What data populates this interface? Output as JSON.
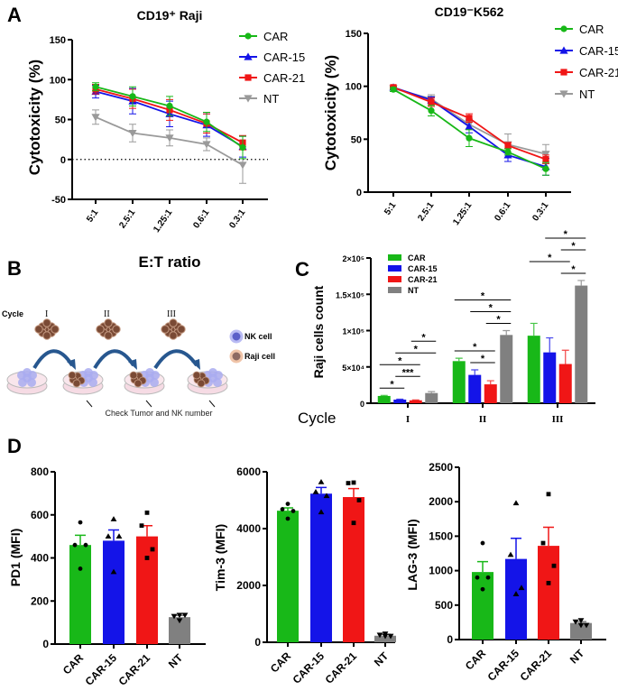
{
  "panel_labels": {
    "a": "A",
    "b": "B",
    "c": "C",
    "d": "D"
  },
  "colors": {
    "CAR": "#18b818",
    "CAR-15": "#1414e8",
    "CAR-21": "#f01616",
    "NT_line": "#9a9a9a",
    "NT_bar": "#808080"
  },
  "shared_xlabel": "E:T ratio",
  "schematic": {
    "cycle_label": "Cycle",
    "cycles": [
      "I",
      "II",
      "III"
    ],
    "legend": [
      {
        "label": "NK cell",
        "color": "#8b8fe0"
      },
      {
        "label": "Raji cell",
        "color": "#9a6a5a"
      }
    ],
    "caption": "Check Tumor and NK number"
  },
  "chart_data": [
    {
      "type": "line",
      "title": "CD19⁺ Raji",
      "ylabel": "Cytotoxicity (%)",
      "xlabel": "E:T ratio",
      "categories": [
        "5:1",
        "2.5:1",
        "1.25:1",
        "0.6:1",
        "0.3:1"
      ],
      "ylim": [
        -50,
        150
      ],
      "yticks": [
        -50,
        0,
        50,
        100,
        150
      ],
      "reference_line": 0,
      "legend_position": "top-right",
      "series": [
        {
          "name": "CAR",
          "marker": "circle",
          "values": [
            91,
            79,
            67,
            47,
            15
          ],
          "error": [
            5,
            12,
            12,
            12,
            14
          ]
        },
        {
          "name": "CAR-15",
          "marker": "triangle-up",
          "values": [
            85,
            73,
            57,
            43,
            16
          ],
          "error": [
            8,
            16,
            16,
            14,
            13
          ]
        },
        {
          "name": "CAR-21",
          "marker": "square",
          "values": [
            88,
            76,
            62,
            45,
            21
          ],
          "error": [
            6,
            12,
            13,
            12,
            9
          ]
        },
        {
          "name": "NT",
          "marker": "triangle-down",
          "values": [
            53,
            33,
            27,
            19,
            -7
          ],
          "error": [
            9,
            11,
            10,
            8,
            23
          ]
        }
      ]
    },
    {
      "type": "line",
      "title": "CD19⁻K562",
      "ylabel": "Cytotoxicity (%)",
      "categories": [
        "5:1",
        "2.5:1",
        "1.25:1",
        "0.6:1",
        "0.3:1"
      ],
      "ylim": [
        0,
        150
      ],
      "yticks": [
        0,
        50,
        100,
        150
      ],
      "legend_position": "top-right",
      "series": [
        {
          "name": "CAR",
          "marker": "circle",
          "values": [
            97,
            77,
            51,
            38,
            22
          ],
          "error": [
            2,
            5,
            8,
            3,
            6
          ]
        },
        {
          "name": "CAR-15",
          "marker": "triangle-up",
          "values": [
            99,
            87,
            62,
            35,
            24
          ],
          "error": [
            1,
            3,
            6,
            6,
            8
          ]
        },
        {
          "name": "CAR-21",
          "marker": "square",
          "values": [
            99,
            85,
            70,
            44,
            31
          ],
          "error": [
            1,
            4,
            4,
            3,
            4
          ]
        },
        {
          "name": "NT",
          "marker": "triangle-down",
          "values": [
            98,
            88,
            64,
            45,
            36
          ],
          "error": [
            1,
            4,
            5,
            10,
            9
          ]
        }
      ]
    },
    {
      "type": "bar",
      "ylabel": "Raji cells count",
      "xlabel": "Cycle",
      "categories": [
        "I",
        "II",
        "III"
      ],
      "ylim": [
        0,
        200000
      ],
      "yticks": [
        0,
        50000,
        100000,
        150000,
        200000
      ],
      "yticklabels": [
        "0",
        "5×10⁴",
        "1×10⁵",
        "1.5×10⁵",
        "2×10⁵"
      ],
      "legend_position": "top-left",
      "series": [
        {
          "name": "CAR",
          "values": [
            10000,
            58000,
            93000
          ],
          "error": [
            800,
            4000,
            17000
          ]
        },
        {
          "name": "CAR-15",
          "values": [
            5000,
            39000,
            70000
          ],
          "error": [
            600,
            7000,
            20000
          ]
        },
        {
          "name": "CAR-21",
          "values": [
            4000,
            26000,
            54000
          ],
          "error": [
            500,
            5000,
            19000
          ]
        },
        {
          "name": "NT",
          "values": [
            14000,
            94000,
            162000
          ],
          "error": [
            2000,
            6000,
            7000
          ]
        }
      ],
      "significance": [
        {
          "group": 0,
          "from": 0,
          "to": 1,
          "label": "*"
        },
        {
          "group": 0,
          "from": 1,
          "to": 2,
          "label": "***"
        },
        {
          "group": 0,
          "from": 0,
          "to": 2,
          "label": "*"
        },
        {
          "group": 0,
          "from": 1,
          "to": 3,
          "label": "*"
        },
        {
          "group": 0,
          "from": 2,
          "to": 3,
          "label": "*"
        },
        {
          "group": 1,
          "from": 1,
          "to": 2,
          "label": "*"
        },
        {
          "group": 1,
          "from": 0,
          "to": 2,
          "label": "*"
        },
        {
          "group": 1,
          "from": 2,
          "to": 3,
          "label": "*"
        },
        {
          "group": 1,
          "from": 1,
          "to": 3,
          "label": "*"
        },
        {
          "group": 1,
          "from": 0,
          "to": 3,
          "label": "*"
        },
        {
          "group": 2,
          "from": 2,
          "to": 3,
          "label": "*"
        },
        {
          "group": 2,
          "from": 0,
          "to": 2,
          "label": "*"
        },
        {
          "group": 2,
          "from": 2,
          "to": 3,
          "label": "*"
        },
        {
          "group": 2,
          "from": 1,
          "to": 3,
          "label": "*"
        }
      ]
    },
    {
      "type": "bar",
      "ylabel": "PD1 (MFI)",
      "categories": [
        "CAR",
        "CAR-15",
        "CAR-21",
        "NT"
      ],
      "ylim": [
        0,
        800
      ],
      "yticks": [
        0,
        200,
        400,
        600,
        800
      ],
      "values": [
        460,
        480,
        500,
        125
      ],
      "error": [
        45,
        50,
        50,
        8
      ],
      "points": [
        [
          565,
          460,
          460,
          350
        ],
        [
          580,
          500,
          500,
          335
        ],
        [
          610,
          550,
          440,
          400
        ],
        [
          135,
          130,
          135,
          110
        ]
      ]
    },
    {
      "type": "bar",
      "ylabel": "Tim-3 (MFI)",
      "categories": [
        "CAR",
        "CAR-15",
        "CAR-21",
        "NT"
      ],
      "ylim": [
        0,
        6000
      ],
      "yticks": [
        0,
        2000,
        4000,
        6000
      ],
      "values": [
        4630,
        5230,
        5110,
        230
      ],
      "error": [
        100,
        220,
        300,
        50
      ],
      "points": [
        [
          4870,
          4680,
          4620,
          4350
        ],
        [
          5640,
          5290,
          5150,
          4580
        ],
        [
          5620,
          5600,
          5000,
          4200
        ],
        [
          300,
          260,
          220,
          220
        ]
      ]
    },
    {
      "type": "bar",
      "ylabel": "LAG-3 (MFI)",
      "categories": [
        "CAR",
        "CAR-15",
        "CAR-21",
        "NT"
      ],
      "ylim": [
        0,
        2500
      ],
      "yticks": [
        0,
        500,
        1000,
        1500,
        2000,
        2500
      ],
      "values": [
        980,
        1170,
        1360,
        240
      ],
      "error": [
        150,
        300,
        270,
        20
      ],
      "points": [
        [
          1400,
          900,
          900,
          730
        ],
        [
          1980,
          1230,
          750,
          660
        ],
        [
          2110,
          1400,
          1070,
          820
        ],
        [
          280,
          260,
          210,
          210
        ]
      ]
    }
  ]
}
